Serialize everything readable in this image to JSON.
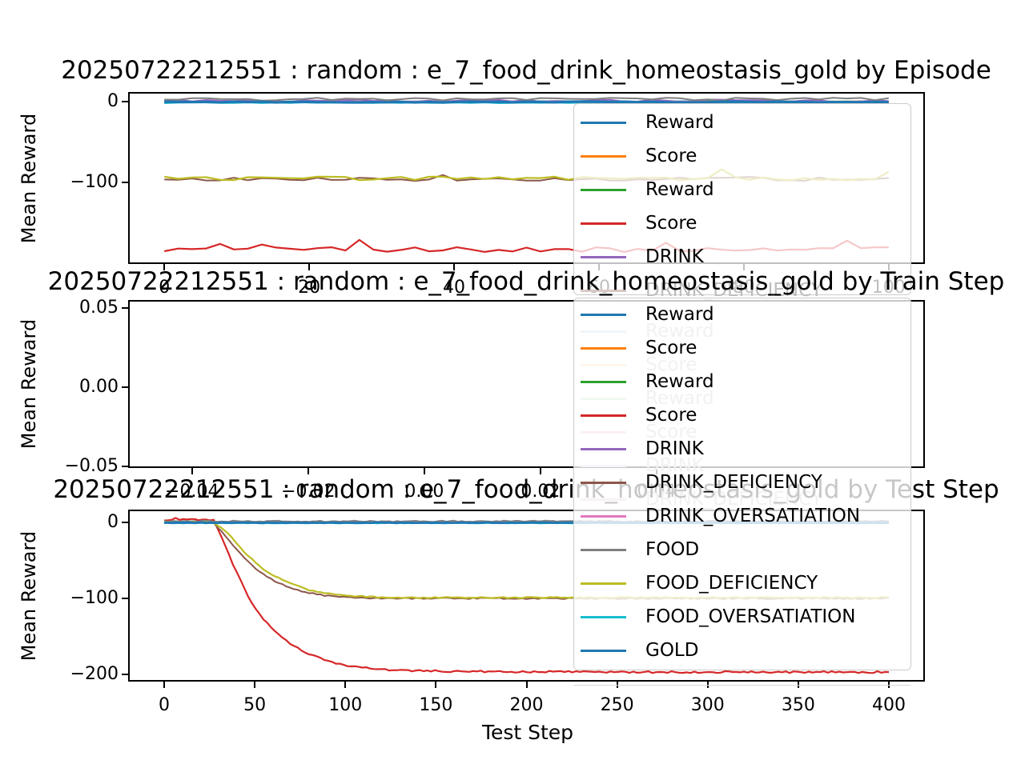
{
  "titles": {
    "t1": "20250722212551 : random : e_7_food_drink_homeostasis_gold by Episode",
    "t2": "20250722212551 : random : e_7_food_drink_homeostasis_gold by Train Step",
    "t3": "20250722212551 : random : e_7_food_drink_homeostasis_gold by Test Step"
  },
  "ylabel": "Mean Reward",
  "legend": {
    "labels": [
      "Reward",
      "Score",
      "Reward",
      "Score",
      "DRINK",
      "DRINK_DEFICIENCY",
      "DRINK_OVERSATIATION",
      "FOOD",
      "FOOD_DEFICIENCY",
      "FOOD_OVERSATIATION",
      "GOLD"
    ],
    "colors": [
      "#1f77b4",
      "#ff7f0e",
      "#2ca02c",
      "#d62728",
      "#9467bd",
      "#8c564b",
      "#e377c2",
      "#7f7f7f",
      "#bcbd22",
      "#17becf",
      "#1f77b4"
    ],
    "frame_color": "#cccccc",
    "frame_alpha": 0.78
  },
  "chart_data": [
    {
      "type": "line",
      "title": "20250722212551 : random : e_7_food_drink_homeostasis_gold by Episode",
      "xlabel": "",
      "ylabel": "Mean Reward",
      "xlim": [
        -5,
        105
      ],
      "ylim": [
        -200.9,
        11.9
      ],
      "xticks": [
        {
          "v": 0,
          "label": "0"
        },
        {
          "v": 20,
          "label": "20"
        },
        {
          "v": 40,
          "label": "40"
        },
        {
          "v": 60,
          "label": "60"
        },
        {
          "v": 80,
          "label": "80"
        },
        {
          "v": 100,
          "label": "100"
        }
      ],
      "yticks": [
        {
          "v": 0,
          "label": "0"
        },
        {
          "v": -100,
          "label": "−100"
        }
      ],
      "grid": false,
      "legend_position": "upper right",
      "series": [
        {
          "name": "Reward",
          "color": "#1f77b4",
          "width": 2,
          "noise": 0.5,
          "spike": 0,
          "points": [
            [
              0,
              0
            ],
            [
              100,
              0
            ]
          ]
        },
        {
          "name": "Score",
          "color": "#ff7f0e",
          "width": 2,
          "noise": 0.4,
          "spike": 0,
          "points": [
            [
              0,
              0
            ],
            [
              100,
              0
            ]
          ]
        },
        {
          "name": "Reward",
          "color": "#2ca02c",
          "width": 2,
          "noise": 0.4,
          "spike": 0,
          "points": [
            [
              0,
              0
            ],
            [
              100,
              0
            ]
          ]
        },
        {
          "name": "Score",
          "color": "#d62728",
          "width": 2.2,
          "noise": 3,
          "spike": 12,
          "points": [
            [
              0,
              -183
            ],
            [
              100,
              -183
            ]
          ]
        },
        {
          "name": "DRINK",
          "color": "#9467bd",
          "width": 2,
          "noise": 1.5,
          "spike": 0,
          "points": [
            [
              0,
              1
            ],
            [
              100,
              1
            ]
          ]
        },
        {
          "name": "DRINK_DEFICIENCY",
          "color": "#8c564b",
          "width": 2,
          "noise": 2.2,
          "spike": 5,
          "points": [
            [
              0,
              -96
            ],
            [
              100,
              -96
            ]
          ]
        },
        {
          "name": "DRINK_OVERSATIATION",
          "color": "#e377c2",
          "width": 2,
          "noise": 0.3,
          "spike": 0,
          "points": [
            [
              0,
              0
            ],
            [
              100,
              0
            ]
          ]
        },
        {
          "name": "FOOD",
          "color": "#7f7f7f",
          "width": 2,
          "noise": 1.8,
          "spike": 0,
          "points": [
            [
              0,
              3
            ],
            [
              100,
              3
            ]
          ]
        },
        {
          "name": "FOOD_DEFICIENCY",
          "color": "#bcbd22",
          "width": 2.2,
          "noise": 2.4,
          "spike": 13,
          "points": [
            [
              0,
              -95
            ],
            [
              100,
              -95
            ]
          ]
        },
        {
          "name": "FOOD_OVERSATIATION",
          "color": "#17becf",
          "width": 2,
          "noise": 0.5,
          "spike": 0,
          "points": [
            [
              0,
              -1.5
            ],
            [
              100,
              -1.5
            ]
          ]
        },
        {
          "name": "GOLD",
          "color": "#1f77b4",
          "width": 3.2,
          "noise": 0.5,
          "spike": 0,
          "points": [
            [
              0,
              -0.5
            ],
            [
              100,
              -0.5
            ]
          ]
        }
      ]
    },
    {
      "type": "line",
      "title": "20250722212551 : random : e_7_food_drink_homeostasis_gold by Train Step",
      "xlabel": "",
      "ylabel": "Mean Reward",
      "xlim": [
        -0.051,
        0.0862
      ],
      "ylim": [
        -0.051,
        0.0551
      ],
      "xticks": [
        {
          "v": -0.04,
          "label": "−0.04"
        },
        {
          "v": -0.02,
          "label": "−0.02"
        },
        {
          "v": 0,
          "label": "0.00"
        },
        {
          "v": 0.02,
          "label": "0.02"
        },
        {
          "v": 0.04,
          "label": "0.04"
        }
      ],
      "yticks": [
        {
          "v": 0.05,
          "label": "0.05"
        },
        {
          "v": 0,
          "label": "0.00"
        },
        {
          "v": -0.05,
          "label": "−0.05"
        }
      ],
      "grid": false,
      "legend_position": "upper right",
      "series": []
    },
    {
      "type": "line",
      "title": "20250722212551 : random : e_7_food_drink_homeostasis_gold by Test Step",
      "xlabel": "Test Step",
      "ylabel": "Mean Reward",
      "xlim": [
        -19.9,
        419.9
      ],
      "ylim": [
        -209.5,
        16.8
      ],
      "xticks": [
        {
          "v": 0,
          "label": "0"
        },
        {
          "v": 50,
          "label": "50"
        },
        {
          "v": 100,
          "label": "100"
        },
        {
          "v": 150,
          "label": "150"
        },
        {
          "v": 200,
          "label": "200"
        },
        {
          "v": 250,
          "label": "250"
        },
        {
          "v": 300,
          "label": "300"
        },
        {
          "v": 350,
          "label": "350"
        },
        {
          "v": 400,
          "label": "400"
        }
      ],
      "yticks": [
        {
          "v": 0,
          "label": "0"
        },
        {
          "v": -100,
          "label": "−100"
        },
        {
          "v": -200,
          "label": "−200"
        }
      ],
      "grid": false,
      "legend_position": "upper right",
      "series": [
        {
          "name": "Reward",
          "color": "#1f77b4",
          "width": 2,
          "noise": 0.3,
          "spike": 0,
          "points": [
            [
              0,
              0
            ],
            [
              400,
              0
            ]
          ]
        },
        {
          "name": "Score",
          "color": "#ff7f0e",
          "width": 2,
          "noise": 0.3,
          "spike": 0,
          "points": [
            [
              0,
              0
            ],
            [
              400,
              0
            ]
          ]
        },
        {
          "name": "Reward",
          "color": "#2ca02c",
          "width": 2,
          "noise": 0.3,
          "spike": 0,
          "points": [
            [
              0,
              0
            ],
            [
              400,
              0
            ]
          ]
        },
        {
          "name": "Score",
          "color": "#d62728",
          "width": 2.2,
          "noise": 1.2,
          "spike": 0,
          "points": [
            [
              0,
              3
            ],
            [
              6,
              5
            ],
            [
              12,
              3
            ],
            [
              18,
              4
            ],
            [
              24,
              3
            ],
            [
              27,
              4
            ],
            [
              29,
              -5
            ],
            [
              32,
              -22
            ],
            [
              35,
              -38
            ],
            [
              38,
              -55
            ],
            [
              42,
              -75
            ],
            [
              46,
              -95
            ],
            [
              50,
              -112
            ],
            [
              55,
              -128
            ],
            [
              60,
              -141
            ],
            [
              66,
              -153
            ],
            [
              72,
              -163
            ],
            [
              80,
              -173
            ],
            [
              90,
              -182
            ],
            [
              100,
              -188
            ],
            [
              112,
              -192
            ],
            [
              130,
              -195
            ],
            [
              160,
              -196
            ],
            [
              250,
              -197
            ],
            [
              400,
              -197
            ]
          ]
        },
        {
          "name": "DRINK",
          "color": "#9467bd",
          "width": 2,
          "noise": 0.4,
          "spike": 0,
          "points": [
            [
              0,
              0
            ],
            [
              400,
              0
            ]
          ]
        },
        {
          "name": "DRINK_DEFICIENCY",
          "color": "#8c564b",
          "width": 2,
          "noise": 0.8,
          "spike": 0,
          "points": [
            [
              0,
              0
            ],
            [
              27,
              0
            ],
            [
              30,
              -8
            ],
            [
              34,
              -18
            ],
            [
              38,
              -30
            ],
            [
              43,
              -44
            ],
            [
              48,
              -56
            ],
            [
              54,
              -67
            ],
            [
              60,
              -76
            ],
            [
              68,
              -85
            ],
            [
              78,
              -92
            ],
            [
              88,
              -96
            ],
            [
              100,
              -98.5
            ],
            [
              115,
              -100
            ],
            [
              400,
              -100
            ]
          ]
        },
        {
          "name": "DRINK_OVERSATIATION",
          "color": "#e377c2",
          "width": 2,
          "noise": 0.3,
          "spike": 0,
          "points": [
            [
              0,
              0
            ],
            [
              400,
              0
            ]
          ]
        },
        {
          "name": "FOOD",
          "color": "#7f7f7f",
          "width": 2,
          "noise": 0.8,
          "spike": 0,
          "points": [
            [
              0,
              1.5
            ],
            [
              400,
              1.5
            ]
          ]
        },
        {
          "name": "FOOD_DEFICIENCY",
          "color": "#bcbd22",
          "width": 2.2,
          "noise": 0.8,
          "spike": 0,
          "points": [
            [
              0,
              0
            ],
            [
              27,
              0
            ],
            [
              31,
              -6
            ],
            [
              35,
              -14
            ],
            [
              39,
              -25
            ],
            [
              44,
              -38
            ],
            [
              49,
              -50
            ],
            [
              55,
              -62
            ],
            [
              62,
              -72
            ],
            [
              70,
              -81
            ],
            [
              80,
              -89
            ],
            [
              92,
              -94
            ],
            [
              105,
              -97
            ],
            [
              120,
              -99
            ],
            [
              400,
              -99
            ]
          ]
        },
        {
          "name": "FOOD_OVERSATIATION",
          "color": "#17becf",
          "width": 2,
          "noise": 0.4,
          "spike": 0,
          "points": [
            [
              0,
              -1
            ],
            [
              400,
              -1
            ]
          ]
        },
        {
          "name": "GOLD",
          "color": "#1f77b4",
          "width": 2.8,
          "noise": 0.3,
          "spike": 0,
          "points": [
            [
              0,
              -0.5
            ],
            [
              400,
              -0.5
            ]
          ]
        }
      ]
    }
  ]
}
